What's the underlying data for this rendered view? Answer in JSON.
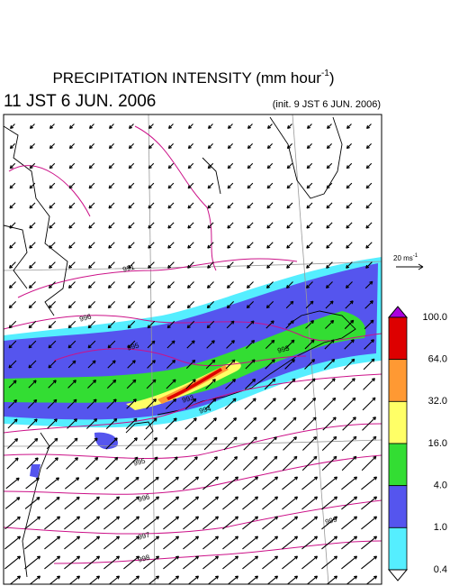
{
  "header": {
    "title": "PRECIPITATION INTENSITY (mm hour",
    "title_sup": "-1",
    "title_end": ")",
    "valid_time": "11 JST 6 JUN. 2006",
    "init_time": "(init. 9 JST 6 JUN. 2006)"
  },
  "wind_scale": {
    "label": "20 ms",
    "sup": "-1"
  },
  "colorbar": {
    "labels": [
      "100.0",
      "64.0",
      "32.0",
      "16.0",
      "4.0",
      "1.0",
      "0.4"
    ],
    "colors": [
      "#dd0000",
      "#ff9933",
      "#ffff66",
      "#33dd33",
      "#5555ee",
      "#55eeff"
    ],
    "over_color": "#aa00dd",
    "under_color": "#ffffff"
  },
  "contour_labels": [
    "991",
    "996",
    "995",
    "993",
    "993",
    "994",
    "995",
    "996",
    "997",
    "998",
    "999"
  ]
}
